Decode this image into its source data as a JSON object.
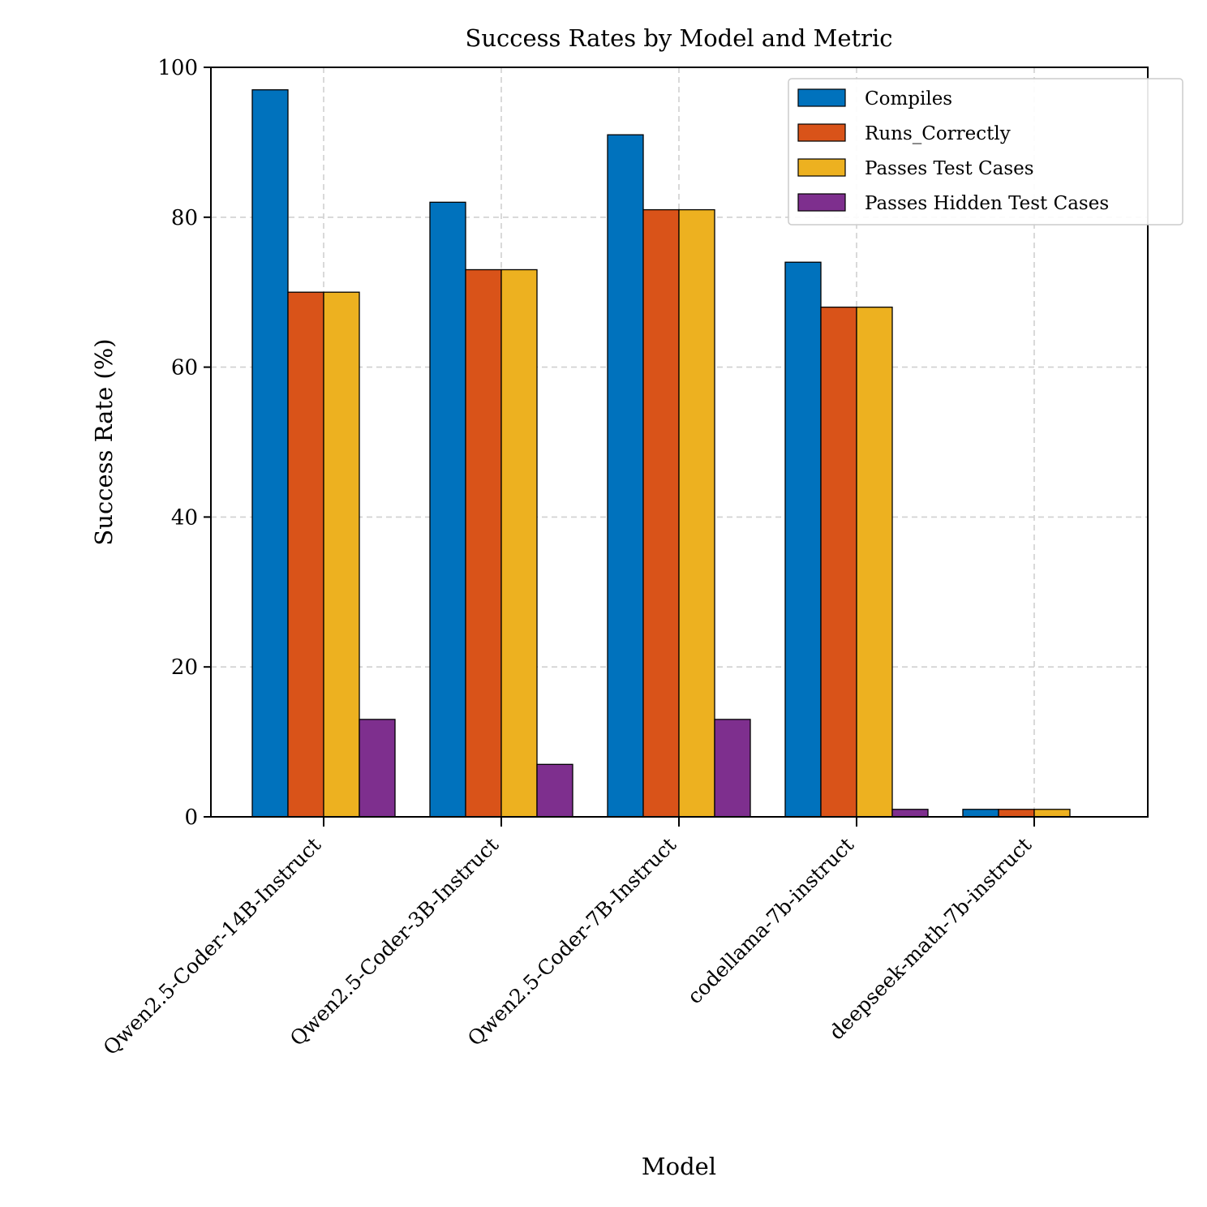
{
  "chart_data": {
    "type": "bar",
    "title": "Success Rates by Model and Metric",
    "xlabel": "Model",
    "ylabel": "Success Rate (%)",
    "ylim": [
      0,
      100
    ],
    "yticks": [
      0,
      20,
      40,
      60,
      80,
      100
    ],
    "grid": true,
    "legend_position": "top-right",
    "categories": [
      "Qwen2.5-Coder-14B-Instruct",
      "Qwen2.5-Coder-3B-Instruct",
      "Qwen2.5-Coder-7B-Instruct",
      "codellama-7b-instruct",
      "deepseek-math-7b-instruct"
    ],
    "series": [
      {
        "name": "Compiles",
        "color": "#0072bd",
        "values": [
          97,
          82,
          91,
          74,
          1
        ]
      },
      {
        "name": "Runs_Correctly",
        "color": "#d95319",
        "values": [
          70,
          73,
          81,
          68,
          1
        ]
      },
      {
        "name": "Passes Test Cases",
        "color": "#edb120",
        "values": [
          70,
          73,
          81,
          68,
          1
        ]
      },
      {
        "name": "Passes Hidden Test Cases",
        "color": "#7e2f8e",
        "values": [
          13,
          7,
          13,
          1,
          0
        ]
      }
    ]
  }
}
